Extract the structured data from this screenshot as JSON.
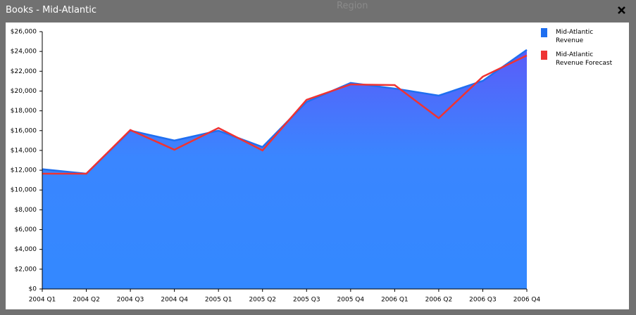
{
  "window": {
    "title": "Books - Mid-Atlantic",
    "background_label": "Region"
  },
  "chart_data": {
    "type": "area",
    "categories": [
      "2004 Q1",
      "2004 Q2",
      "2004 Q3",
      "2004 Q4",
      "2005 Q1",
      "2005 Q2",
      "2005 Q3",
      "2005 Q4",
      "2006 Q1",
      "2006 Q2",
      "2006 Q3",
      "2006 Q4"
    ],
    "series": [
      {
        "name": "Mid-Atlantic Revenue",
        "type": "area",
        "color": "#1f6ff0",
        "values": [
          12100,
          11650,
          16000,
          15000,
          16000,
          14350,
          18900,
          20820,
          20250,
          19540,
          21030,
          24160
        ]
      },
      {
        "name": "Mid-Atlantic Revenue Forecast",
        "type": "line",
        "color": "#ee3333",
        "values": [
          11650,
          11650,
          16060,
          14070,
          16270,
          14000,
          19110,
          20670,
          20600,
          17260,
          21450,
          23590
        ]
      }
    ],
    "ylim": [
      0,
      26000
    ],
    "yticks": [
      {
        "value": 0,
        "label": "$0"
      },
      {
        "value": 2000,
        "label": "$2,000"
      },
      {
        "value": 4000,
        "label": "$4,000"
      },
      {
        "value": 6000,
        "label": "$6,000"
      },
      {
        "value": 8000,
        "label": "$8,000"
      },
      {
        "value": 10000,
        "label": "$10,000"
      },
      {
        "value": 12000,
        "label": "$12,000"
      },
      {
        "value": 14000,
        "label": "$14,000"
      },
      {
        "value": 16000,
        "label": "$16,000"
      },
      {
        "value": 18000,
        "label": "$18,000"
      },
      {
        "value": 20000,
        "label": "$20,000"
      },
      {
        "value": 22000,
        "label": "$22,000"
      },
      {
        "value": 24000,
        "label": "$24,000"
      },
      {
        "value": 26000,
        "label": "$26,000"
      }
    ],
    "legend": "right"
  }
}
